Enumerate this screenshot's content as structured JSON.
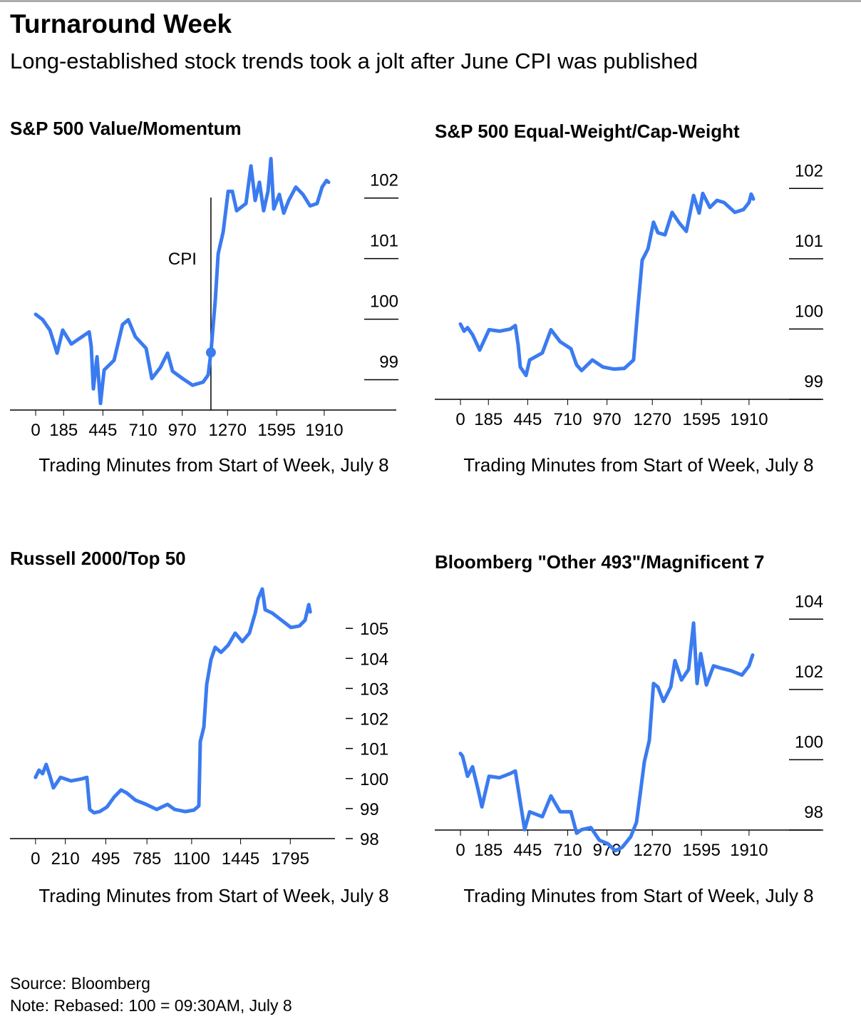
{
  "title": "Turnaround Week",
  "subtitle": "Long-established stock trends took a jolt after June CPI was published",
  "source": "Source: Bloomberg",
  "note": "Note: Rebased: 100 = 09:30AM, July 8",
  "chart_data": [
    {
      "type": "line",
      "title": "S&P 500 Value/Momentum",
      "x_label": "Trading Minutes from Start of Week, July 8",
      "xlim": [
        -170,
        2387
      ],
      "xticks": [
        0,
        185,
        445,
        710,
        970,
        1270,
        1595,
        1910
      ],
      "ylim": [
        98.5,
        102.75
      ],
      "yticks": [
        99,
        100,
        101,
        102
      ],
      "ytick_style": "underline",
      "annotations": [
        {
          "label": "CPI",
          "x": 1160,
          "y": 99.45
        }
      ],
      "series": [
        {
          "color": "#3b7bf0",
          "x": [
            0,
            47,
            94,
            142,
            179,
            236,
            354,
            368,
            382,
            406,
            429,
            453,
            519,
            575,
            613,
            660,
            731,
            769,
            825,
            873,
            906,
            972,
            1038,
            1108,
            1142,
            1160,
            1189,
            1208,
            1241,
            1274,
            1302,
            1330,
            1392,
            1425,
            1453,
            1481,
            1509,
            1538,
            1557,
            1576,
            1613,
            1642,
            1675,
            1722,
            1769,
            1816,
            1863,
            1896,
            1925,
            1939
          ],
          "values": [
            100.08,
            99.99,
            99.82,
            99.44,
            99.82,
            99.59,
            99.79,
            99.55,
            98.85,
            99.38,
            98.61,
            99.16,
            99.32,
            99.91,
            99.99,
            99.71,
            99.52,
            99.02,
            99.2,
            99.44,
            99.14,
            99.02,
            98.91,
            98.96,
            99.08,
            99.45,
            100.32,
            101.08,
            101.44,
            102.11,
            102.11,
            101.79,
            101.91,
            102.53,
            101.96,
            102.26,
            101.79,
            102.11,
            102.65,
            101.82,
            102.06,
            101.75,
            101.96,
            102.18,
            102.06,
            101.87,
            101.91,
            102.18,
            102.29,
            102.26
          ]
        }
      ]
    },
    {
      "type": "line",
      "title": "S&P 500 Equal-Weight/Cap-Weight",
      "x_label": "Trading Minutes from Start of Week, July 8",
      "xlim": [
        -170,
        2387
      ],
      "xticks": [
        0,
        185,
        445,
        710,
        970,
        1270,
        1595,
        1910
      ],
      "ylim": [
        99,
        102.5
      ],
      "yticks": [
        99,
        100,
        101,
        102
      ],
      "ytick_style": "underline",
      "series": [
        {
          "color": "#3b7bf0",
          "x": [
            0,
            24,
            47,
            80,
            127,
            189,
            259,
            330,
            363,
            382,
            396,
            434,
            458,
            542,
            599,
            660,
            731,
            769,
            802,
            873,
            943,
            1014,
            1085,
            1146,
            1175,
            1203,
            1241,
            1278,
            1307,
            1354,
            1401,
            1448,
            1495,
            1543,
            1580,
            1604,
            1651,
            1698,
            1745,
            1816,
            1873,
            1910,
            1924,
            1939
          ],
          "values": [
            100.07,
            99.97,
            100.02,
            99.92,
            99.7,
            99.99,
            99.97,
            100.0,
            100.05,
            99.77,
            99.46,
            99.34,
            99.56,
            99.66,
            99.99,
            99.82,
            99.72,
            99.49,
            99.41,
            99.56,
            99.46,
            99.43,
            99.44,
            99.56,
            100.32,
            100.98,
            101.14,
            101.52,
            101.37,
            101.34,
            101.66,
            101.51,
            101.39,
            101.9,
            101.65,
            101.93,
            101.73,
            101.83,
            101.8,
            101.66,
            101.7,
            101.8,
            101.92,
            101.85
          ]
        }
      ]
    },
    {
      "type": "line",
      "title": "Russell 2000/Top 50",
      "x_label": "Trading Minutes from Start of Week, July 8",
      "xlim": [
        -180,
        2110
      ],
      "xticks": [
        0,
        210,
        495,
        785,
        1100,
        1445,
        1795
      ],
      "ylim": [
        98,
        106.5
      ],
      "yticks": [
        98,
        99,
        100,
        101,
        102,
        103,
        104,
        105
      ],
      "ytick_style": "dash",
      "series": [
        {
          "color": "#3b7bf0",
          "x": [
            0,
            25,
            50,
            75,
            101,
            126,
            176,
            251,
            327,
            362,
            382,
            412,
            452,
            503,
            553,
            603,
            643,
            704,
            779,
            854,
            930,
            980,
            1055,
            1116,
            1151,
            1161,
            1186,
            1206,
            1236,
            1266,
            1307,
            1357,
            1407,
            1457,
            1507,
            1548,
            1568,
            1598,
            1618,
            1668,
            1734,
            1799,
            1859,
            1899,
            1925,
            1935
          ],
          "values": [
            100.04,
            100.28,
            100.16,
            100.47,
            100.09,
            99.69,
            100.04,
            99.92,
            99.99,
            100.04,
            98.97,
            98.86,
            98.9,
            99.05,
            99.38,
            99.62,
            99.52,
            99.28,
            99.14,
            98.97,
            99.14,
            98.97,
            98.9,
            98.95,
            99.09,
            101.23,
            101.71,
            103.13,
            103.96,
            104.37,
            104.2,
            104.44,
            104.84,
            104.56,
            104.84,
            105.51,
            105.98,
            106.31,
            105.62,
            105.51,
            105.27,
            105.03,
            105.08,
            105.27,
            105.79,
            105.55
          ]
        }
      ]
    },
    {
      "type": "line",
      "title": "Bloomberg \"Other 493\"/Magnificent 7",
      "x_label": "Trading Minutes from Start of Week, July 8",
      "xlim": [
        -170,
        2387
      ],
      "xticks": [
        0,
        185,
        445,
        710,
        970,
        1270,
        1595,
        1910
      ],
      "ylim": [
        98,
        105
      ],
      "yticks": [
        98,
        100,
        102,
        104
      ],
      "ytick_style": "underline",
      "series": [
        {
          "color": "#3b7bf0",
          "x": [
            0,
            14,
            47,
            80,
            118,
            142,
            189,
            259,
            330,
            363,
            391,
            425,
            458,
            542,
            599,
            660,
            731,
            769,
            802,
            863,
            920,
            976,
            1024,
            1071,
            1127,
            1165,
            1193,
            1217,
            1250,
            1278,
            1307,
            1344,
            1392,
            1420,
            1463,
            1510,
            1543,
            1566,
            1590,
            1628,
            1675,
            1722,
            1792,
            1863,
            1910,
            1934
          ],
          "values": [
            100.18,
            100.1,
            99.53,
            99.8,
            99.13,
            98.66,
            99.53,
            99.49,
            99.61,
            99.68,
            98.93,
            98.01,
            98.52,
            98.38,
            98.97,
            98.52,
            98.52,
            97.91,
            98.01,
            98.07,
            97.71,
            97.61,
            97.41,
            97.51,
            97.81,
            98.22,
            99.13,
            99.94,
            100.55,
            102.17,
            102.07,
            101.66,
            102.07,
            102.82,
            102.27,
            102.57,
            103.89,
            102.17,
            103.02,
            102.13,
            102.67,
            102.61,
            102.53,
            102.41,
            102.67,
            102.98
          ]
        }
      ]
    }
  ]
}
